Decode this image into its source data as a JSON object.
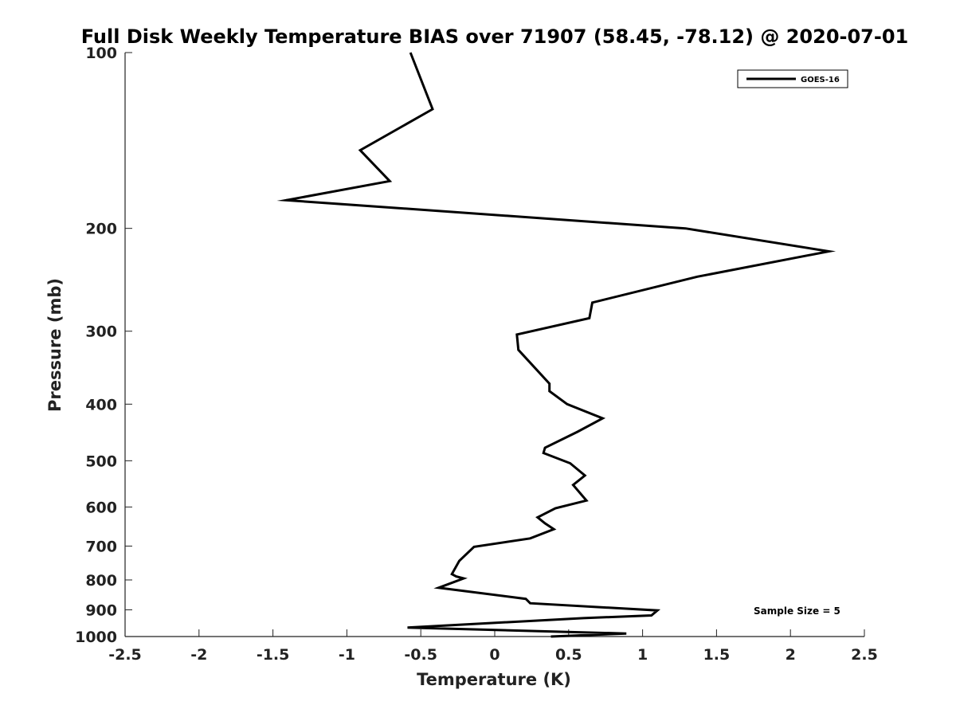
{
  "chart_data": {
    "type": "line",
    "title": "Full Disk Weekly Temperature BIAS over 71907 (58.45, -78.12) @ 2020-07-01",
    "xlabel": "Temperature (K)",
    "ylabel": "Pressure (mb)",
    "xlim": [
      -2.5,
      2.5
    ],
    "ylim": [
      1000,
      100
    ],
    "y_scale": "log",
    "y_reversed": true,
    "x_ticks": [
      -2.5,
      -2,
      -1.5,
      -1,
      -0.5,
      0,
      0.5,
      1,
      1.5,
      2,
      2.5
    ],
    "x_tick_labels": [
      "-2.5",
      "-2",
      "-1.5",
      "-1",
      "-0.5",
      "0",
      "0.5",
      "1",
      "1.5",
      "2",
      "2.5"
    ],
    "y_ticks": [
      100,
      200,
      300,
      400,
      500,
      600,
      700,
      800,
      900,
      1000
    ],
    "y_tick_labels": [
      "100",
      "200",
      "300",
      "400",
      "500",
      "600",
      "700",
      "800",
      "900",
      "1000"
    ],
    "grid": false,
    "legend_position": "top-right",
    "annotation": "Sample Size = 5",
    "series": [
      {
        "name": "GOES-16",
        "color": "#000000",
        "points": [
          {
            "x": -0.57,
            "p": 100
          },
          {
            "x": -0.42,
            "p": 125
          },
          {
            "x": -0.91,
            "p": 147
          },
          {
            "x": -0.71,
            "p": 166
          },
          {
            "x": -1.41,
            "p": 179
          },
          {
            "x": 1.29,
            "p": 200
          },
          {
            "x": 2.26,
            "p": 219
          },
          {
            "x": 1.37,
            "p": 242
          },
          {
            "x": 0.66,
            "p": 268
          },
          {
            "x": 0.64,
            "p": 285
          },
          {
            "x": 0.15,
            "p": 304
          },
          {
            "x": 0.16,
            "p": 323
          },
          {
            "x": 0.37,
            "p": 369
          },
          {
            "x": 0.37,
            "p": 380
          },
          {
            "x": 0.49,
            "p": 400
          },
          {
            "x": 0.73,
            "p": 423
          },
          {
            "x": 0.56,
            "p": 446
          },
          {
            "x": 0.34,
            "p": 475
          },
          {
            "x": 0.33,
            "p": 485
          },
          {
            "x": 0.51,
            "p": 505
          },
          {
            "x": 0.61,
            "p": 530
          },
          {
            "x": 0.53,
            "p": 550
          },
          {
            "x": 0.62,
            "p": 585
          },
          {
            "x": 0.41,
            "p": 603
          },
          {
            "x": 0.29,
            "p": 625
          },
          {
            "x": 0.34,
            "p": 640
          },
          {
            "x": 0.4,
            "p": 655
          },
          {
            "x": 0.24,
            "p": 679
          },
          {
            "x": -0.14,
            "p": 702
          },
          {
            "x": -0.24,
            "p": 742
          },
          {
            "x": -0.29,
            "p": 782
          },
          {
            "x": -0.26,
            "p": 789
          },
          {
            "x": -0.21,
            "p": 795
          },
          {
            "x": -0.38,
            "p": 825
          },
          {
            "x": 0.21,
            "p": 862
          },
          {
            "x": 0.24,
            "p": 877
          },
          {
            "x": 1.1,
            "p": 902
          },
          {
            "x": 1.06,
            "p": 920
          },
          {
            "x": 0.6,
            "p": 930
          },
          {
            "x": -0.59,
            "p": 965
          },
          {
            "x": 0.89,
            "p": 988
          },
          {
            "x": 0.38,
            "p": 1000
          }
        ]
      }
    ]
  }
}
